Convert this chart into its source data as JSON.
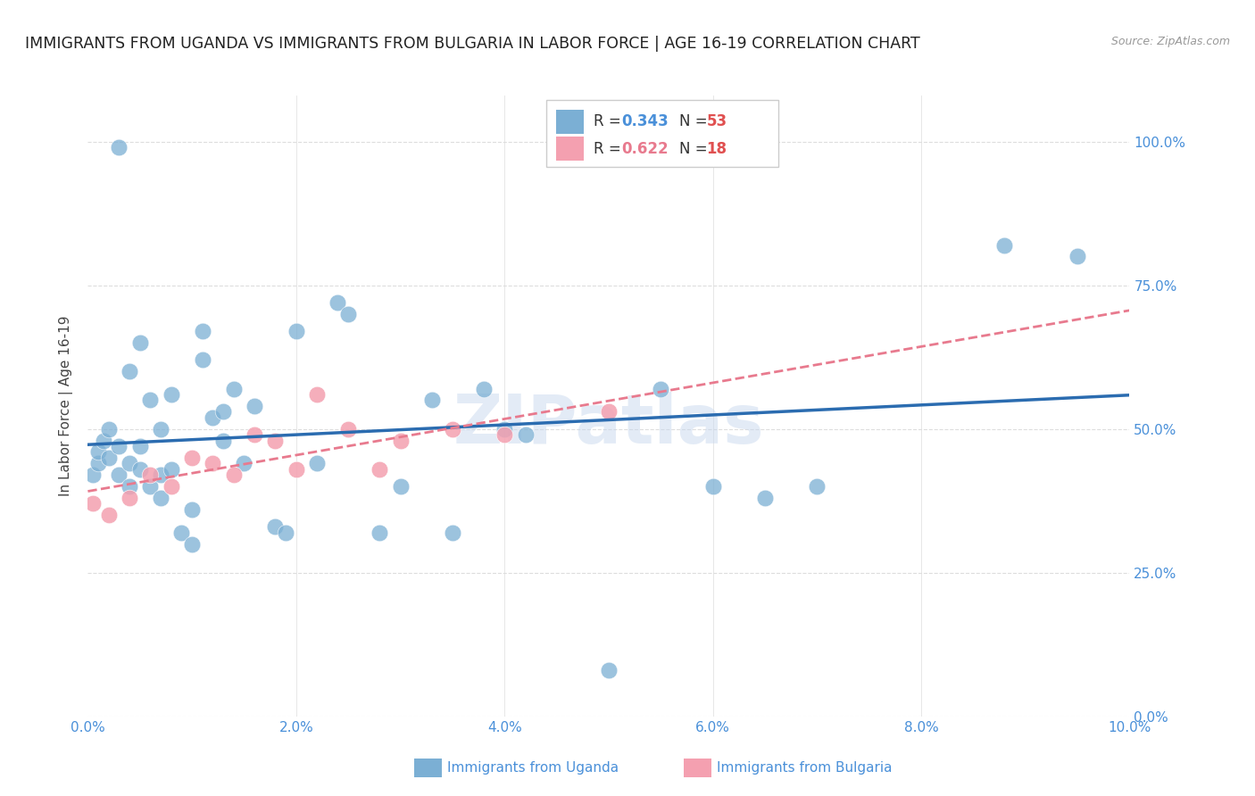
{
  "title": "IMMIGRANTS FROM UGANDA VS IMMIGRANTS FROM BULGARIA IN LABOR FORCE | AGE 16-19 CORRELATION CHART",
  "source": "Source: ZipAtlas.com",
  "ylabel": "In Labor Force | Age 16-19",
  "xlim": [
    0.0,
    0.1
  ],
  "ylim": [
    0.0,
    1.08
  ],
  "uganda_color": "#7bafd4",
  "bulgaria_color": "#f4a0b0",
  "uganda_R": 0.343,
  "uganda_N": 53,
  "bulgaria_R": 0.622,
  "bulgaria_N": 18,
  "watermark": "ZIPatlas",
  "uganda_x": [
    0.0005,
    0.001,
    0.001,
    0.0015,
    0.002,
    0.002,
    0.003,
    0.003,
    0.003,
    0.004,
    0.004,
    0.004,
    0.005,
    0.005,
    0.005,
    0.006,
    0.006,
    0.007,
    0.007,
    0.007,
    0.008,
    0.008,
    0.009,
    0.01,
    0.01,
    0.011,
    0.011,
    0.012,
    0.013,
    0.013,
    0.014,
    0.015,
    0.016,
    0.018,
    0.019,
    0.02,
    0.022,
    0.024,
    0.025,
    0.028,
    0.03,
    0.033,
    0.035,
    0.038,
    0.04,
    0.042,
    0.05,
    0.055,
    0.06,
    0.065,
    0.07,
    0.088,
    0.095
  ],
  "uganda_y": [
    0.42,
    0.44,
    0.46,
    0.48,
    0.45,
    0.5,
    0.42,
    0.47,
    0.99,
    0.4,
    0.44,
    0.6,
    0.43,
    0.47,
    0.65,
    0.4,
    0.55,
    0.38,
    0.42,
    0.5,
    0.43,
    0.56,
    0.32,
    0.3,
    0.36,
    0.62,
    0.67,
    0.52,
    0.53,
    0.48,
    0.57,
    0.44,
    0.54,
    0.33,
    0.32,
    0.67,
    0.44,
    0.72,
    0.7,
    0.32,
    0.4,
    0.55,
    0.32,
    0.57,
    0.5,
    0.49,
    0.08,
    0.57,
    0.4,
    0.38,
    0.4,
    0.82,
    0.8
  ],
  "bulgaria_x": [
    0.0005,
    0.002,
    0.004,
    0.006,
    0.008,
    0.01,
    0.012,
    0.014,
    0.016,
    0.018,
    0.02,
    0.022,
    0.025,
    0.028,
    0.03,
    0.035,
    0.04,
    0.05
  ],
  "bulgaria_y": [
    0.37,
    0.35,
    0.38,
    0.42,
    0.4,
    0.45,
    0.44,
    0.42,
    0.49,
    0.48,
    0.43,
    0.56,
    0.5,
    0.43,
    0.48,
    0.5,
    0.49,
    0.53
  ],
  "background_color": "#ffffff",
  "grid_color": "#dddddd",
  "tick_color": "#4a90d9",
  "title_color": "#222222",
  "title_fontsize": 12.5,
  "axis_label_color": "#444444",
  "legend_R_color_uganda": "#4a90d9",
  "legend_R_color_bulgaria": "#e87a8e",
  "legend_N_color": "#e05050",
  "line_color_uganda": "#2b6cb0",
  "line_color_bulgaria": "#e87a8e"
}
